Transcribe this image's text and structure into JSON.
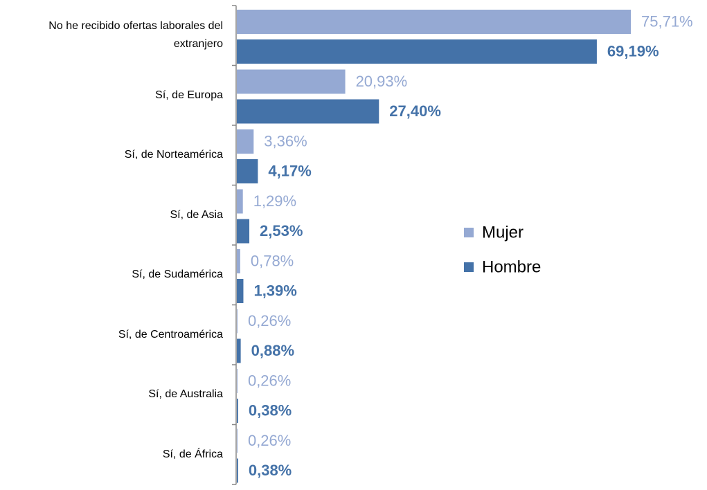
{
  "chart_data": {
    "type": "bar",
    "orientation": "horizontal",
    "categories": [
      "No he recibido ofertas laborales del extranjero",
      "Sí, de Europa",
      "Sí, de Norteamérica",
      "Sí, de Asia",
      "Sí, de Sudamérica",
      "Sí, de Centroamérica",
      "Sí, de Australia",
      "Sí, de África"
    ],
    "series": [
      {
        "name": "Mujer",
        "color": "#95a9d3",
        "values": [
          75.71,
          20.93,
          3.36,
          1.29,
          0.78,
          0.26,
          0.26,
          0.26
        ],
        "value_labels": [
          "75,71%",
          "20,93%",
          "3,36%",
          "1,29%",
          "0,78%",
          "0,26%",
          "0,26%",
          "0,26%"
        ]
      },
      {
        "name": "Hombre",
        "color": "#4472a8",
        "values": [
          69.19,
          27.4,
          4.17,
          2.53,
          1.39,
          0.88,
          0.38,
          0.38
        ],
        "value_labels": [
          "69,19%",
          "27,40%",
          "4,17%",
          "2,53%",
          "1,39%",
          "0,88%",
          "0,38%",
          "0,38%"
        ]
      }
    ],
    "legend": "right"
  }
}
